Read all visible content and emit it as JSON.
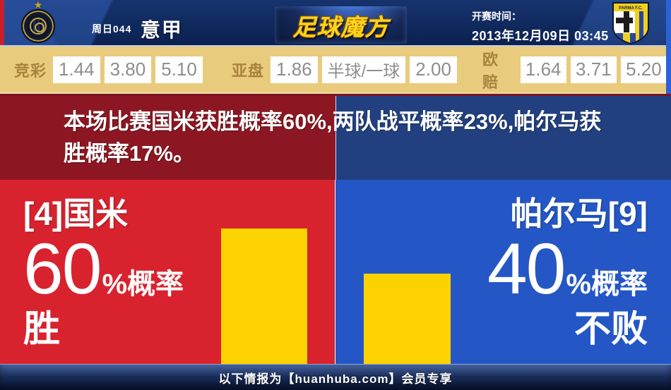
{
  "header": {
    "match_code": "周日044",
    "league": "意甲",
    "site_logo": "足球魔方",
    "kickoff_label": "开赛时间：",
    "kickoff_datetime": "2013年12月09日 03:45",
    "home_badge": "inter-milan-crest",
    "away_badge": "parma-crest",
    "away_badge_text": "PARMA F.C."
  },
  "odds_bar": {
    "sporttery": {
      "label": "竞彩",
      "values": [
        "1.44",
        "3.80",
        "5.10"
      ]
    },
    "asian_handicap": {
      "label": "亚盘",
      "home": "1.86",
      "line": "半球/一球",
      "away": "2.00"
    },
    "european": {
      "label": "欧赔",
      "values": [
        "1.64",
        "3.71",
        "5.20"
      ]
    }
  },
  "analysis": {
    "summary": "本场比赛国米获胜概率60%,两队战平概率23%,帕尔马获胜概率17%。"
  },
  "prediction": {
    "home": {
      "team_label": "[4]国米",
      "probability_text": "60",
      "suffix": "%概率",
      "outcome": "胜"
    },
    "away": {
      "team_label": "帕尔马[9]",
      "probability_text": "40",
      "suffix": "%概率",
      "outcome": "不败"
    }
  },
  "footer": {
    "notice": "以下情报为【huanhuba.com】会员专享"
  },
  "colors": {
    "home_panel_red": "#d8232f",
    "away_panel_blue": "#2457c5",
    "analysis_red": "#8c1722",
    "analysis_blue": "#22407f",
    "bar_yellow": "#fcd201",
    "odds_background_tan": "#e9cb7e",
    "odds_label_gold": "#a7843d",
    "header_navy": "#102a5e",
    "logo_gold": "#ffd41c"
  },
  "chart_data": {
    "type": "bar",
    "categories": [
      "[4]国米",
      "帕尔马[9]"
    ],
    "values": [
      60,
      40
    ],
    "unit": "%",
    "annotations": [
      "60%概率胜",
      "40%概率不败"
    ],
    "bar_color": "#fcd201",
    "ylim": [
      0,
      80
    ],
    "legend_position": "none",
    "grid": false
  }
}
